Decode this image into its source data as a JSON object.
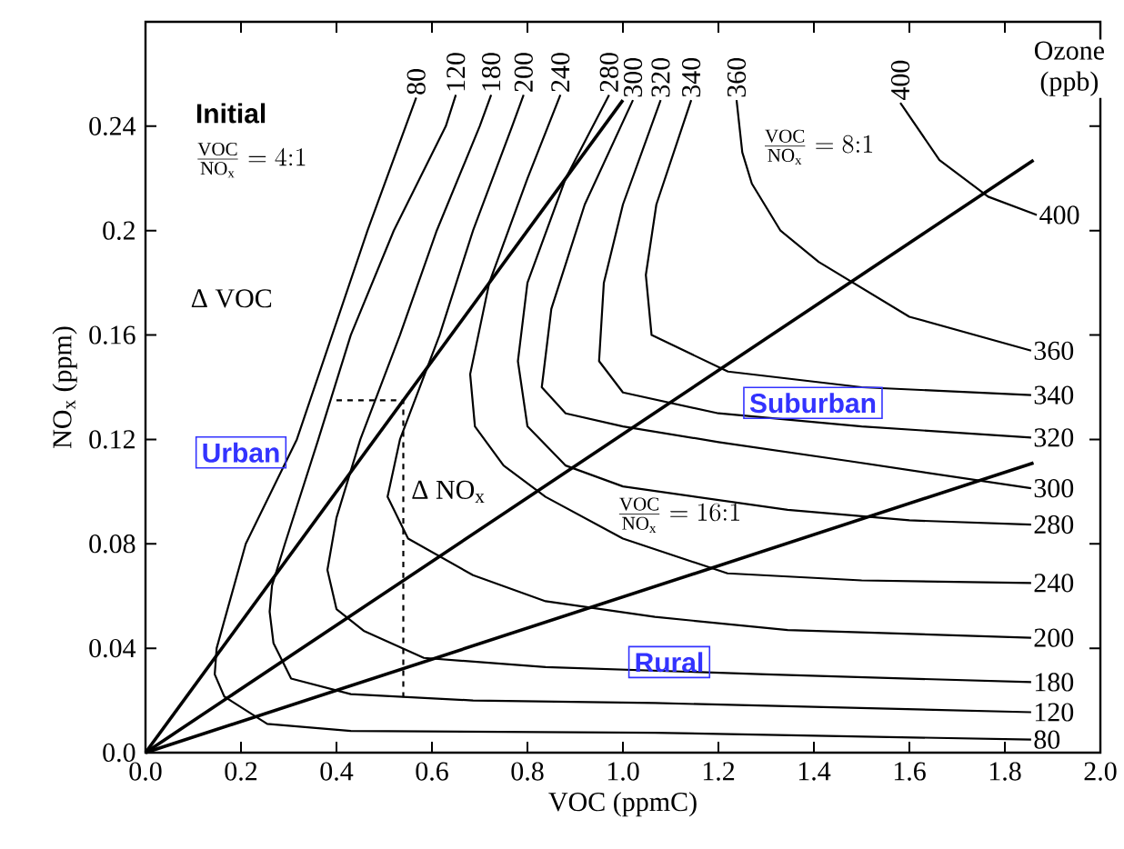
{
  "chart_data": {
    "type": "line",
    "legend": "right",
    "xlabel": "VOC (ppmC)",
    "ylabel": "NO$_{x}$ (ppm)",
    "xlim": [
      0,
      2.0
    ],
    "ylim": [
      0,
      0.28
    ],
    "xticks": [
      {
        "value": 0,
        "label": "0.0"
      },
      0.2,
      0.4,
      0.6,
      0.8,
      {
        "value": 1,
        "label": "1.0"
      },
      1.2,
      1.4,
      1.6,
      1.8,
      {
        "value": 2,
        "label": "2.0"
      }
    ],
    "yticks": [
      {
        "value": 0,
        "label": "0.0"
      },
      0.04,
      0.08,
      0.12,
      0.16,
      0.2,
      0.24
    ],
    "series": [
      {
        "name": "80",
        "color": "#000000",
        "x": [
          0.567,
          0.545,
          0.465,
          0.317,
          0.21,
          0.149,
          0.145,
          0.165,
          0.255,
          0.43,
          1.067,
          1.855
        ],
        "values": [
          0.251,
          0.24,
          0.2,
          0.12,
          0.08,
          0.04,
          0.03,
          0.0215,
          0.011,
          0.0083,
          0.0076,
          0.005
        ]
      },
      {
        "name": "120",
        "color": "#000000",
        "x": [
          0.65,
          0.629,
          0.52,
          0.43,
          0.362,
          0.292,
          0.265,
          0.26,
          0.268,
          0.305,
          0.43,
          0.686,
          1.067,
          1.855
        ],
        "values": [
          0.252,
          0.24,
          0.2,
          0.16,
          0.12,
          0.08,
          0.064,
          0.054,
          0.042,
          0.0284,
          0.0224,
          0.02,
          0.019,
          0.0155
        ]
      },
      {
        "name": "180",
        "color": "#000000",
        "x": [
          0.724,
          0.7,
          0.61,
          0.533,
          0.45,
          0.4,
          0.381,
          0.4,
          0.457,
          0.583,
          0.838,
          1.3,
          1.855
        ],
        "values": [
          0.252,
          0.24,
          0.2,
          0.16,
          0.12,
          0.09,
          0.07,
          0.055,
          0.0467,
          0.0363,
          0.0328,
          0.03,
          0.027
        ]
      },
      {
        "name": "200",
        "color": "#000000",
        "x": [
          0.792,
          0.768,
          0.686,
          0.616,
          0.533,
          0.507,
          0.55,
          0.686,
          0.838,
          1.067,
          1.345,
          1.855
        ],
        "values": [
          0.252,
          0.24,
          0.2,
          0.16,
          0.12,
          0.098,
          0.082,
          0.068,
          0.058,
          0.052,
          0.047,
          0.044
        ]
      },
      {
        "name": "240",
        "color": "#000000",
        "x": [
          0.869,
          0.8,
          0.72,
          0.68,
          0.69,
          0.75,
          0.838,
          1.0,
          1.219,
          1.5,
          1.855
        ],
        "values": [
          0.252,
          0.22,
          0.18,
          0.145,
          0.125,
          0.11,
          0.098,
          0.082,
          0.0687,
          0.066,
          0.065
        ]
      },
      {
        "name": "280",
        "color": "#000000",
        "x": [
          0.971,
          0.88,
          0.8,
          0.78,
          0.8,
          0.88,
          1.0,
          1.345,
          1.6,
          1.855
        ],
        "values": [
          0.252,
          0.22,
          0.18,
          0.15,
          0.125,
          0.11,
          0.102,
          0.093,
          0.089,
          0.0874
        ]
      },
      {
        "name": "300",
        "color": "#000000",
        "x": [
          1.021,
          0.92,
          0.85,
          0.83,
          0.88,
          1.0,
          1.2,
          1.474,
          1.855
        ],
        "values": [
          0.25,
          0.21,
          0.17,
          0.14,
          0.13,
          0.125,
          0.119,
          0.1117,
          0.1013
        ]
      },
      {
        "name": "320",
        "color": "#000000",
        "x": [
          1.079,
          1.0,
          0.96,
          0.95,
          1.0,
          1.2,
          1.5,
          1.855
        ],
        "values": [
          0.25,
          0.21,
          0.18,
          0.15,
          0.138,
          0.13,
          0.125,
          0.1207
        ]
      },
      {
        "name": "340",
        "color": "#000000",
        "x": [
          1.143,
          1.07,
          1.048,
          1.06,
          1.22,
          1.5,
          1.855
        ],
        "values": [
          0.25,
          0.21,
          0.183,
          0.16,
          0.146,
          0.14,
          0.137
        ]
      },
      {
        "name": "360",
        "color": "#000000",
        "x": [
          1.238,
          1.25,
          1.27,
          1.33,
          1.41,
          1.6,
          1.855
        ],
        "values": [
          0.25,
          0.23,
          0.218,
          0.2,
          0.188,
          0.167,
          0.154
        ]
      },
      {
        "name": "400",
        "color": "#000000",
        "x": [
          1.581,
          1.663,
          1.765,
          1.867
        ],
        "values": [
          0.249,
          0.227,
          0.213,
          0.206
        ]
      },
      {
        "color": "#000000",
        "x": [
          0,
          1.0
        ],
        "values": [
          0,
          0.25
        ]
      },
      {
        "color": "#000000",
        "x": [
          0,
          1.86
        ],
        "values": [
          0,
          0.227
        ]
      },
      {
        "color": "#000000",
        "x": [
          0,
          1.86
        ],
        "values": [
          0,
          0.111
        ]
      },
      {
        "color": "#000000",
        "line_style": "dashed",
        "x": [
          0.4,
          0.54,
          0.54
        ],
        "values": [
          0.135,
          0.135,
          0.02
        ]
      }
    ],
    "annotations": [
      "Ozone (ppb)",
      "Initial",
      "\\frac{\\mathrm{VOC}}{\\mathrm{NO_x}} = 4{:}1",
      "Δ VOC",
      "Δ NO$_{x}$",
      "\\frac{\\mathrm{VOC}}{\\mathrm{NO_x}} = 8{:}1",
      "\\frac{\\mathrm{VOC}}{\\mathrm{NO_x}} = 16{:}1",
      "Urban",
      "Suburban",
      "Rural"
    ]
  }
}
